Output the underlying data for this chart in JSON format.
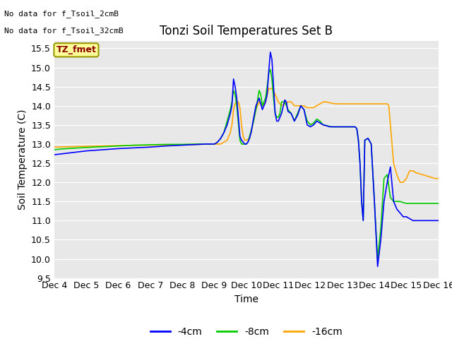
{
  "title": "Tonzi Soil Temperatures Set B",
  "xlabel": "Time",
  "ylabel": "Soil Temperature (C)",
  "ylim": [
    9.5,
    15.7
  ],
  "xlim": [
    0,
    12
  ],
  "xtick_labels": [
    "Dec 4",
    "Dec 5",
    "Dec 6",
    "Dec 7",
    "Dec 8",
    "Dec 9",
    "Dec 10",
    "Dec 11",
    "Dec 12",
    "Dec 13",
    "Dec 14",
    "Dec 15",
    "Dec 16"
  ],
  "xtick_positions": [
    0,
    1,
    2,
    3,
    4,
    5,
    6,
    7,
    8,
    9,
    10,
    11,
    12
  ],
  "ytick_positions": [
    9.5,
    10.0,
    10.5,
    11.0,
    11.5,
    12.0,
    12.5,
    13.0,
    13.5,
    14.0,
    14.5,
    15.0,
    15.5
  ],
  "colors": {
    "4cm": "#0000FF",
    "8cm": "#00CC00",
    "16cm": "#FFA500"
  },
  "no_data_text1": "No data for f_Tsoil_2cmB",
  "no_data_text2": "No data for f_Tsoil_32cmB",
  "label_box_text": "TZ_fmet",
  "label_box_facecolor": "#FFFF99",
  "label_box_edgecolor": "#999900",
  "label_box_textcolor": "#8B0000",
  "background_color": "#E8E8E8",
  "legend_labels": [
    "-4cm",
    "-8cm",
    "-16cm"
  ],
  "series_4cm_x": [
    0.0,
    0.2,
    0.4,
    0.6,
    0.8,
    1.0,
    1.5,
    2.0,
    2.5,
    3.0,
    3.5,
    4.0,
    4.5,
    4.75,
    4.9,
    5.0,
    5.05,
    5.1,
    5.15,
    5.2,
    5.3,
    5.4,
    5.5,
    5.55,
    5.6,
    5.65,
    5.7,
    5.8,
    5.85,
    5.9,
    5.95,
    6.0,
    6.05,
    6.1,
    6.15,
    6.2,
    6.3,
    6.4,
    6.45,
    6.5,
    6.55,
    6.6,
    6.65,
    6.7,
    6.75,
    6.8,
    6.85,
    6.9,
    6.95,
    7.0,
    7.05,
    7.1,
    7.2,
    7.25,
    7.3,
    7.4,
    7.5,
    7.6,
    7.7,
    7.8,
    7.9,
    8.0,
    8.1,
    8.2,
    8.3,
    8.4,
    8.5,
    8.6,
    8.7,
    8.8,
    8.9,
    9.0,
    9.1,
    9.2,
    9.3,
    9.4,
    9.45,
    9.5,
    9.55,
    9.6,
    9.65,
    9.7,
    9.8,
    9.9,
    10.0,
    10.1,
    10.2,
    10.3,
    10.4,
    10.5,
    10.6,
    10.7,
    10.8,
    10.9,
    11.0,
    11.1,
    11.2,
    11.3,
    11.5,
    11.7,
    11.9,
    12.0
  ],
  "series_4cm_y": [
    12.72,
    12.74,
    12.76,
    12.78,
    12.8,
    12.82,
    12.85,
    12.88,
    12.9,
    12.92,
    12.95,
    12.97,
    12.99,
    13.0,
    13.0,
    13.0,
    13.02,
    13.05,
    13.1,
    13.15,
    13.3,
    13.5,
    13.8,
    14.0,
    14.7,
    14.5,
    14.2,
    13.2,
    13.1,
    13.05,
    13.0,
    13.0,
    13.05,
    13.15,
    13.3,
    13.55,
    14.0,
    14.2,
    14.05,
    13.9,
    14.0,
    14.1,
    14.3,
    14.9,
    15.4,
    15.2,
    14.5,
    13.8,
    13.6,
    13.6,
    13.7,
    13.8,
    14.15,
    14.1,
    13.85,
    13.8,
    13.6,
    13.75,
    14.0,
    13.9,
    13.5,
    13.45,
    13.5,
    13.6,
    13.55,
    13.5,
    13.48,
    13.45,
    13.45,
    13.45,
    13.45,
    13.45,
    13.45,
    13.45,
    13.45,
    13.45,
    13.4,
    13.1,
    12.5,
    11.5,
    11.0,
    13.1,
    13.15,
    13.0,
    11.5,
    9.8,
    10.5,
    11.5,
    12.0,
    12.4,
    11.5,
    11.3,
    11.2,
    11.1,
    11.1,
    11.05,
    11.0,
    11.0,
    11.0,
    11.0,
    11.0,
    11.0
  ],
  "series_8cm_x": [
    0.0,
    0.2,
    0.4,
    0.6,
    0.8,
    1.0,
    1.5,
    2.0,
    2.5,
    3.0,
    3.5,
    4.0,
    4.5,
    4.75,
    4.9,
    5.0,
    5.05,
    5.1,
    5.2,
    5.3,
    5.4,
    5.5,
    5.55,
    5.6,
    5.65,
    5.7,
    5.8,
    5.85,
    5.9,
    5.95,
    6.0,
    6.05,
    6.1,
    6.2,
    6.3,
    6.4,
    6.45,
    6.5,
    6.55,
    6.6,
    6.65,
    6.7,
    6.75,
    6.8,
    6.85,
    6.9,
    6.95,
    7.0,
    7.05,
    7.1,
    7.2,
    7.3,
    7.4,
    7.5,
    7.6,
    7.7,
    7.8,
    7.9,
    8.0,
    8.1,
    8.2,
    8.3,
    8.4,
    8.5,
    8.6,
    8.7,
    8.8,
    8.9,
    9.0,
    9.1,
    9.2,
    9.3,
    9.4,
    9.45,
    9.5,
    9.55,
    9.6,
    9.65,
    9.7,
    9.8,
    9.9,
    10.0,
    10.1,
    10.2,
    10.3,
    10.4,
    10.5,
    10.6,
    10.7,
    10.8,
    10.9,
    11.0,
    11.2,
    11.4,
    11.6,
    11.8,
    12.0
  ],
  "series_8cm_y": [
    12.85,
    12.87,
    12.88,
    12.89,
    12.9,
    12.91,
    12.93,
    12.95,
    12.97,
    12.98,
    12.99,
    12.99,
    13.0,
    13.0,
    13.0,
    13.0,
    13.02,
    13.05,
    13.15,
    13.3,
    13.6,
    13.9,
    14.1,
    14.4,
    14.3,
    14.0,
    13.1,
    13.0,
    13.0,
    13.0,
    13.0,
    13.05,
    13.2,
    13.5,
    13.9,
    14.4,
    14.3,
    14.0,
    14.1,
    14.2,
    14.5,
    14.85,
    14.95,
    14.7,
    14.2,
    13.8,
    13.7,
    13.7,
    13.8,
    14.1,
    14.1,
    13.9,
    13.8,
    13.6,
    13.8,
    14.0,
    13.9,
    13.6,
    13.5,
    13.55,
    13.65,
    13.6,
    13.5,
    13.48,
    13.46,
    13.45,
    13.45,
    13.45,
    13.45,
    13.45,
    13.45,
    13.45,
    13.45,
    13.4,
    13.1,
    12.5,
    11.5,
    11.0,
    13.1,
    13.15,
    13.0,
    11.5,
    10.0,
    10.8,
    12.1,
    12.2,
    11.6,
    11.5,
    11.5,
    11.5,
    11.47,
    11.45,
    11.45,
    11.45,
    11.45,
    11.45,
    11.45
  ],
  "series_16cm_x": [
    0.0,
    0.5,
    1.0,
    1.5,
    2.0,
    2.5,
    3.0,
    3.5,
    4.0,
    4.5,
    4.8,
    5.0,
    5.1,
    5.2,
    5.3,
    5.4,
    5.5,
    5.55,
    5.6,
    5.65,
    5.7,
    5.75,
    5.8,
    5.85,
    5.9,
    5.95,
    6.0,
    6.1,
    6.2,
    6.3,
    6.4,
    6.5,
    6.6,
    6.7,
    6.8,
    6.9,
    7.0,
    7.1,
    7.2,
    7.3,
    7.4,
    7.5,
    7.6,
    7.7,
    7.8,
    7.9,
    8.0,
    8.1,
    8.2,
    8.3,
    8.4,
    8.5,
    8.6,
    8.7,
    8.8,
    8.9,
    9.0,
    9.1,
    9.2,
    9.3,
    9.4,
    9.5,
    9.6,
    9.7,
    9.8,
    9.9,
    10.0,
    10.1,
    10.2,
    10.3,
    10.4,
    10.45,
    10.5,
    10.55,
    10.6,
    10.7,
    10.8,
    10.9,
    11.0,
    11.1,
    11.2,
    11.3,
    11.5,
    11.7,
    11.9,
    12.0
  ],
  "series_16cm_y": [
    12.92,
    12.93,
    12.94,
    12.95,
    12.96,
    12.97,
    12.97,
    12.98,
    12.98,
    12.99,
    13.0,
    13.0,
    13.0,
    13.0,
    13.05,
    13.1,
    13.3,
    13.5,
    13.9,
    14.05,
    14.1,
    14.1,
    13.95,
    13.5,
    13.2,
    13.1,
    13.1,
    13.15,
    13.5,
    13.9,
    14.1,
    14.0,
    14.1,
    14.45,
    14.45,
    14.3,
    14.1,
    14.0,
    14.05,
    14.1,
    14.1,
    14.0,
    14.0,
    14.0,
    14.0,
    13.95,
    13.95,
    13.95,
    14.0,
    14.05,
    14.1,
    14.1,
    14.08,
    14.06,
    14.05,
    14.05,
    14.05,
    14.05,
    14.05,
    14.05,
    14.05,
    14.05,
    14.05,
    14.05,
    14.05,
    14.05,
    14.05,
    14.05,
    14.05,
    14.05,
    14.05,
    14.0,
    13.5,
    13.0,
    12.5,
    12.2,
    12.0,
    12.0,
    12.1,
    12.3,
    12.3,
    12.25,
    12.2,
    12.15,
    12.1,
    12.1
  ]
}
